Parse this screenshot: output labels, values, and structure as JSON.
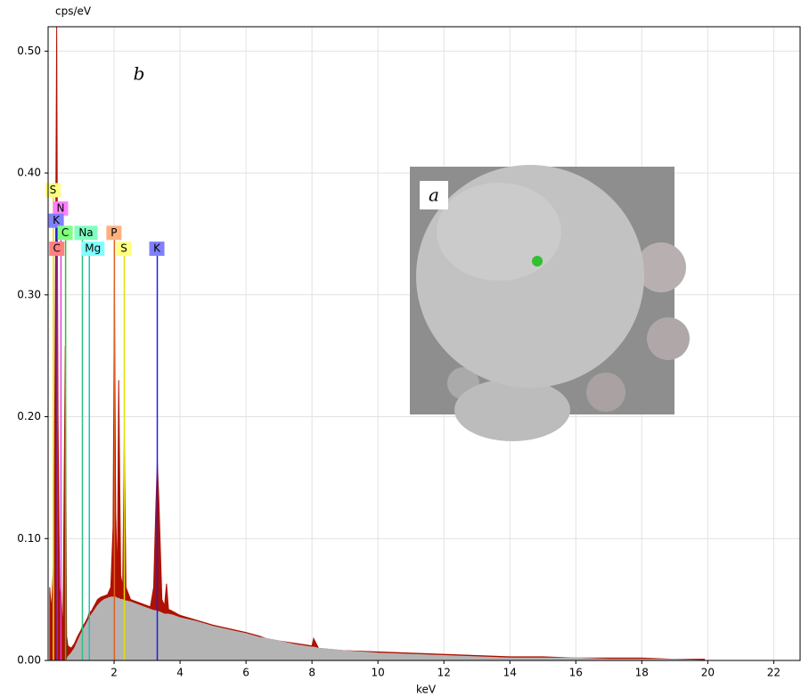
{
  "chart_data": {
    "type": "spectrum",
    "y_label": "cps/eV",
    "x_label": "keV",
    "annotations": [
      "a",
      "b"
    ],
    "xlim": [
      0,
      22.8
    ],
    "ylim": [
      0,
      0.52
    ],
    "xticks": [
      2,
      4,
      6,
      8,
      10,
      12,
      14,
      16,
      18,
      20,
      22
    ],
    "yticks": [
      {
        "value": 0,
        "label": "0.00"
      },
      {
        "value": 0.1,
        "label": "0.10"
      },
      {
        "value": 0.2,
        "label": "0.20"
      },
      {
        "value": 0.3,
        "label": "0.30"
      },
      {
        "value": 0.4,
        "label": "0.40"
      },
      {
        "value": 0.5,
        "label": "0.50"
      }
    ],
    "grid": true,
    "x": [
      0.05,
      0.1,
      0.18,
      0.22,
      0.26,
      0.3,
      0.35,
      0.39,
      0.45,
      0.52,
      0.56,
      0.6,
      0.7,
      0.8,
      0.9,
      1.0,
      1.04,
      1.1,
      1.2,
      1.25,
      1.3,
      1.4,
      1.5,
      1.6,
      1.7,
      1.8,
      1.9,
      1.97,
      2.01,
      2.05,
      2.1,
      2.14,
      2.2,
      2.26,
      2.31,
      2.36,
      2.5,
      2.7,
      2.9,
      3.1,
      3.2,
      3.26,
      3.31,
      3.36,
      3.45,
      3.53,
      3.59,
      3.65,
      3.8,
      4.0,
      4.5,
      5.0,
      5.5,
      6.0,
      6.4,
      6.6,
      7.0,
      7.5,
      8.0,
      8.05,
      8.2,
      9.0,
      10.0,
      11.0,
      12.0,
      13.0,
      14.0,
      15.0,
      16.0,
      17.0,
      18.0,
      19.0,
      19.9
    ],
    "series": [
      {
        "color": "#b01000",
        "values": [
          0.06,
          0.04,
          0.09,
          0.3,
          0.52,
          0.2,
          0.05,
          0.06,
          0.02,
          0.258,
          0.02,
          0.012,
          0.01,
          0.014,
          0.02,
          0.025,
          0.028,
          0.03,
          0.035,
          0.04,
          0.04,
          0.045,
          0.05,
          0.052,
          0.053,
          0.054,
          0.06,
          0.11,
          0.31,
          0.12,
          0.065,
          0.23,
          0.07,
          0.06,
          0.185,
          0.06,
          0.05,
          0.048,
          0.046,
          0.044,
          0.06,
          0.12,
          0.163,
          0.13,
          0.05,
          0.045,
          0.063,
          0.042,
          0.04,
          0.037,
          0.033,
          0.029,
          0.026,
          0.023,
          0.02,
          0.018,
          0.016,
          0.014,
          0.012,
          0.018,
          0.01,
          0.008,
          0.007,
          0.006,
          0.005,
          0.004,
          0.003,
          0.003,
          0.002,
          0.002,
          0.002,
          0.001,
          0.001
        ]
      },
      {
        "color": "#b4b4b4",
        "values": [
          0,
          0,
          0,
          0,
          0,
          0,
          0,
          0,
          0,
          0,
          0,
          0.003,
          0.006,
          0.01,
          0.016,
          0.022,
          0.024,
          0.027,
          0.032,
          0.035,
          0.037,
          0.041,
          0.045,
          0.048,
          0.05,
          0.051,
          0.052,
          0.052,
          0.052,
          0.052,
          0.051,
          0.051,
          0.05,
          0.05,
          0.049,
          0.049,
          0.048,
          0.046,
          0.044,
          0.042,
          0.041,
          0.041,
          0.04,
          0.04,
          0.039,
          0.038,
          0.038,
          0.038,
          0.037,
          0.035,
          0.032,
          0.028,
          0.025,
          0.022,
          0.019,
          0.018,
          0.016,
          0.013,
          0.011,
          0.011,
          0.01,
          0.008,
          0.006,
          0.005,
          0.004,
          0.003,
          0.002,
          0.002,
          0.002,
          0.001,
          0.001,
          0.001,
          0
        ]
      }
    ],
    "markers": [
      {
        "label": "S",
        "x": 0.16,
        "y": 0.38,
        "color": "#ffff80",
        "line": "#e0e000"
      },
      {
        "label": "N",
        "x": 0.39,
        "y": 0.365,
        "color": "#ff80ff",
        "line": "#e040e0"
      },
      {
        "label": "K",
        "x": 0.26,
        "y": 0.355,
        "color": "#8080ff",
        "line": "#2020e0"
      },
      {
        "label": "C",
        "x": 0.53,
        "y": 0.345,
        "color": "#80ff80",
        "line": "#30c030"
      },
      {
        "label": "Na",
        "x": 1.04,
        "y": 0.345,
        "color": "#80ffc0",
        "line": "#30c080"
      },
      {
        "label": "P",
        "x": 2.01,
        "y": 0.345,
        "color": "#ffb080",
        "line": "#e06020"
      },
      {
        "label": "C",
        "x": 0.277,
        "y": 0.332,
        "color": "#ff8080",
        "line": "#e02020"
      },
      {
        "label": "Mg",
        "x": 1.25,
        "y": 0.332,
        "color": "#80ffff",
        "line": "#20c0c0"
      },
      {
        "label": "S",
        "x": 2.31,
        "y": 0.332,
        "color": "#ffff80",
        "line": "#e0e000"
      },
      {
        "label": "K",
        "x": 3.31,
        "y": 0.332,
        "color": "#8080ff",
        "line": "#2020e0"
      }
    ]
  }
}
